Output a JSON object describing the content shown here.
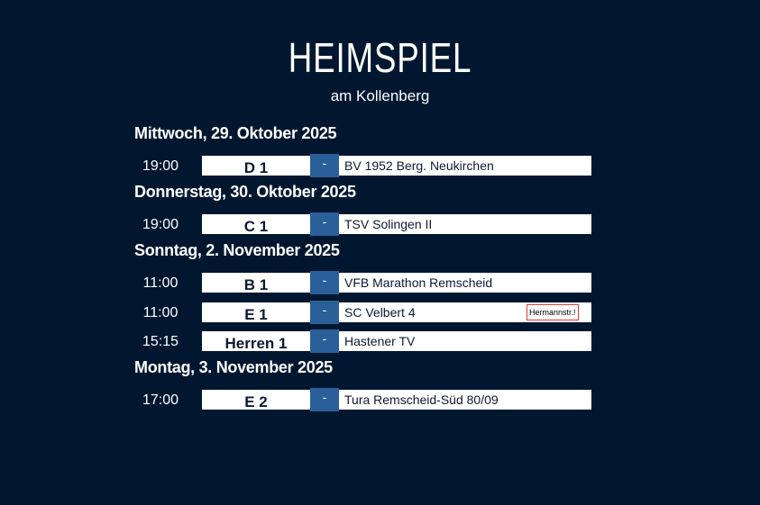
{
  "header": {
    "title": "HEIMSPIEL",
    "subtitle": "am Kollenberg"
  },
  "days": [
    {
      "label": "Mittwoch, 29. Oktober 2025",
      "games": [
        {
          "time": "19:00",
          "team": "D 1",
          "separator": "-",
          "opponent": "BV 1952 Berg. Neukirchen"
        }
      ]
    },
    {
      "label": "Donnerstag, 30. Oktober 2025",
      "games": [
        {
          "time": "19:00",
          "team": "C 1",
          "separator": "-",
          "opponent": "TSV Solingen II"
        }
      ]
    },
    {
      "label": "Sonntag, 2. November 2025",
      "games": [
        {
          "time": "11:00",
          "team": "B 1",
          "separator": "-",
          "opponent": "VFB Marathon Remscheid"
        },
        {
          "time": "11:00",
          "team": "E 1",
          "separator": "-",
          "opponent": "SC Velbert 4",
          "note": "Hermannstr.!"
        },
        {
          "time": "15:15",
          "team": "Herren 1",
          "separator": "-",
          "opponent": "Hastener TV"
        }
      ]
    },
    {
      "label": "Montag, 3. November 2025",
      "games": [
        {
          "time": "17:00",
          "team": "E 2",
          "separator": "-",
          "opponent": "Tura Remscheid-Süd 80/09"
        }
      ]
    }
  ],
  "colors": {
    "background": "#011730",
    "accent": "#2b5f99",
    "note_border": "#e03a3a"
  }
}
